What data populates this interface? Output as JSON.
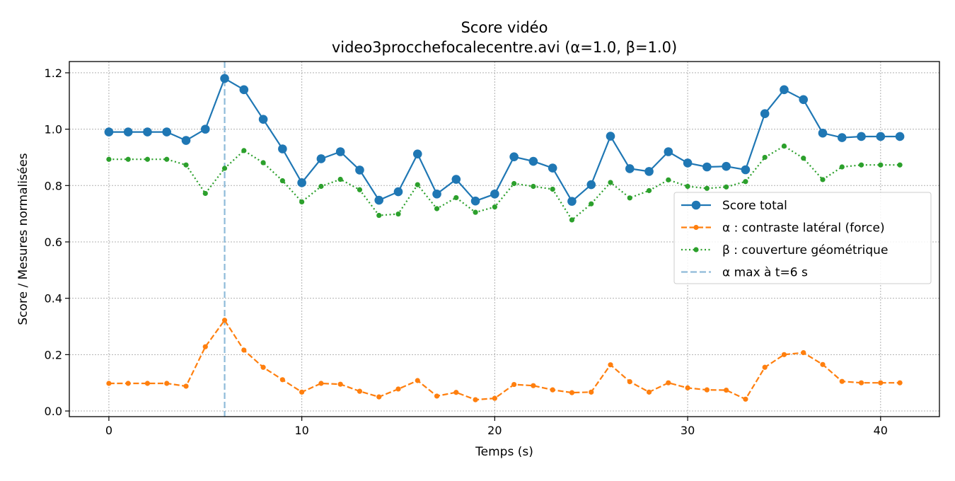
{
  "chart_data": {
    "type": "line",
    "title": "Score vidéo",
    "subtitle": "video3procchefocalecentre.avi (α=1.0, β=1.0)",
    "xlabel": "Temps (s)",
    "ylabel": "Score / Mesures normalisées",
    "xlim": [
      -2.05,
      43.05
    ],
    "ylim": [
      -0.02,
      1.24
    ],
    "xticks": [
      0,
      10,
      20,
      30,
      40
    ],
    "xtick_labels": [
      "0",
      "10",
      "20",
      "30",
      "40"
    ],
    "yticks": [
      0.0,
      0.2,
      0.4,
      0.6,
      0.8,
      1.0,
      1.2
    ],
    "ytick_labels": [
      "0.0",
      "0.2",
      "0.4",
      "0.6",
      "0.8",
      "1.0",
      "1.2"
    ],
    "grid": true,
    "legend_position": "center-right",
    "x": [
      0,
      1,
      2,
      3,
      4,
      5,
      6,
      7,
      8,
      9,
      10,
      11,
      12,
      13,
      14,
      15,
      16,
      17,
      18,
      19,
      20,
      21,
      22,
      23,
      24,
      25,
      26,
      27,
      28,
      29,
      30,
      31,
      32,
      33,
      34,
      35,
      36,
      37,
      38,
      39,
      40,
      41
    ],
    "series": [
      {
        "name": "Score total",
        "color": "#1f77b4",
        "style": "solid",
        "values": [
          0.99,
          0.99,
          0.99,
          0.99,
          0.96,
          1.0,
          1.18,
          1.14,
          1.035,
          0.93,
          0.81,
          0.895,
          0.92,
          0.855,
          0.748,
          0.778,
          0.912,
          0.77,
          0.822,
          0.745,
          0.77,
          0.902,
          0.886,
          0.862,
          0.744,
          0.803,
          0.975,
          0.86,
          0.85,
          0.92,
          0.88,
          0.866,
          0.868,
          0.856,
          1.055,
          1.14,
          1.105,
          0.986,
          0.97,
          0.974,
          0.974,
          0.974
        ]
      },
      {
        "name": "α : contraste latéral (force)",
        "color": "#ff7f0e",
        "style": "dashed",
        "values": [
          0.098,
          0.098,
          0.098,
          0.098,
          0.088,
          0.228,
          0.322,
          0.216,
          0.155,
          0.111,
          0.067,
          0.098,
          0.095,
          0.07,
          0.05,
          0.078,
          0.108,
          0.053,
          0.066,
          0.04,
          0.045,
          0.094,
          0.09,
          0.075,
          0.065,
          0.067,
          0.164,
          0.104,
          0.067,
          0.1,
          0.082,
          0.075,
          0.074,
          0.042,
          0.155,
          0.2,
          0.207,
          0.165,
          0.105,
          0.1,
          0.1,
          0.1
        ]
      },
      {
        "name": "β : couverture géométrique",
        "color": "#2ca02c",
        "style": "dotted",
        "values": [
          0.893,
          0.893,
          0.893,
          0.893,
          0.873,
          0.772,
          0.861,
          0.924,
          0.881,
          0.817,
          0.742,
          0.797,
          0.822,
          0.785,
          0.694,
          0.699,
          0.803,
          0.718,
          0.757,
          0.705,
          0.724,
          0.807,
          0.797,
          0.787,
          0.678,
          0.735,
          0.811,
          0.756,
          0.782,
          0.82,
          0.797,
          0.79,
          0.795,
          0.814,
          0.9,
          0.94,
          0.897,
          0.821,
          0.866,
          0.873,
          0.873,
          0.873
        ]
      }
    ],
    "vline": {
      "x": 6,
      "label": "α max à t=6 s",
      "color": "#1f77b4"
    }
  }
}
